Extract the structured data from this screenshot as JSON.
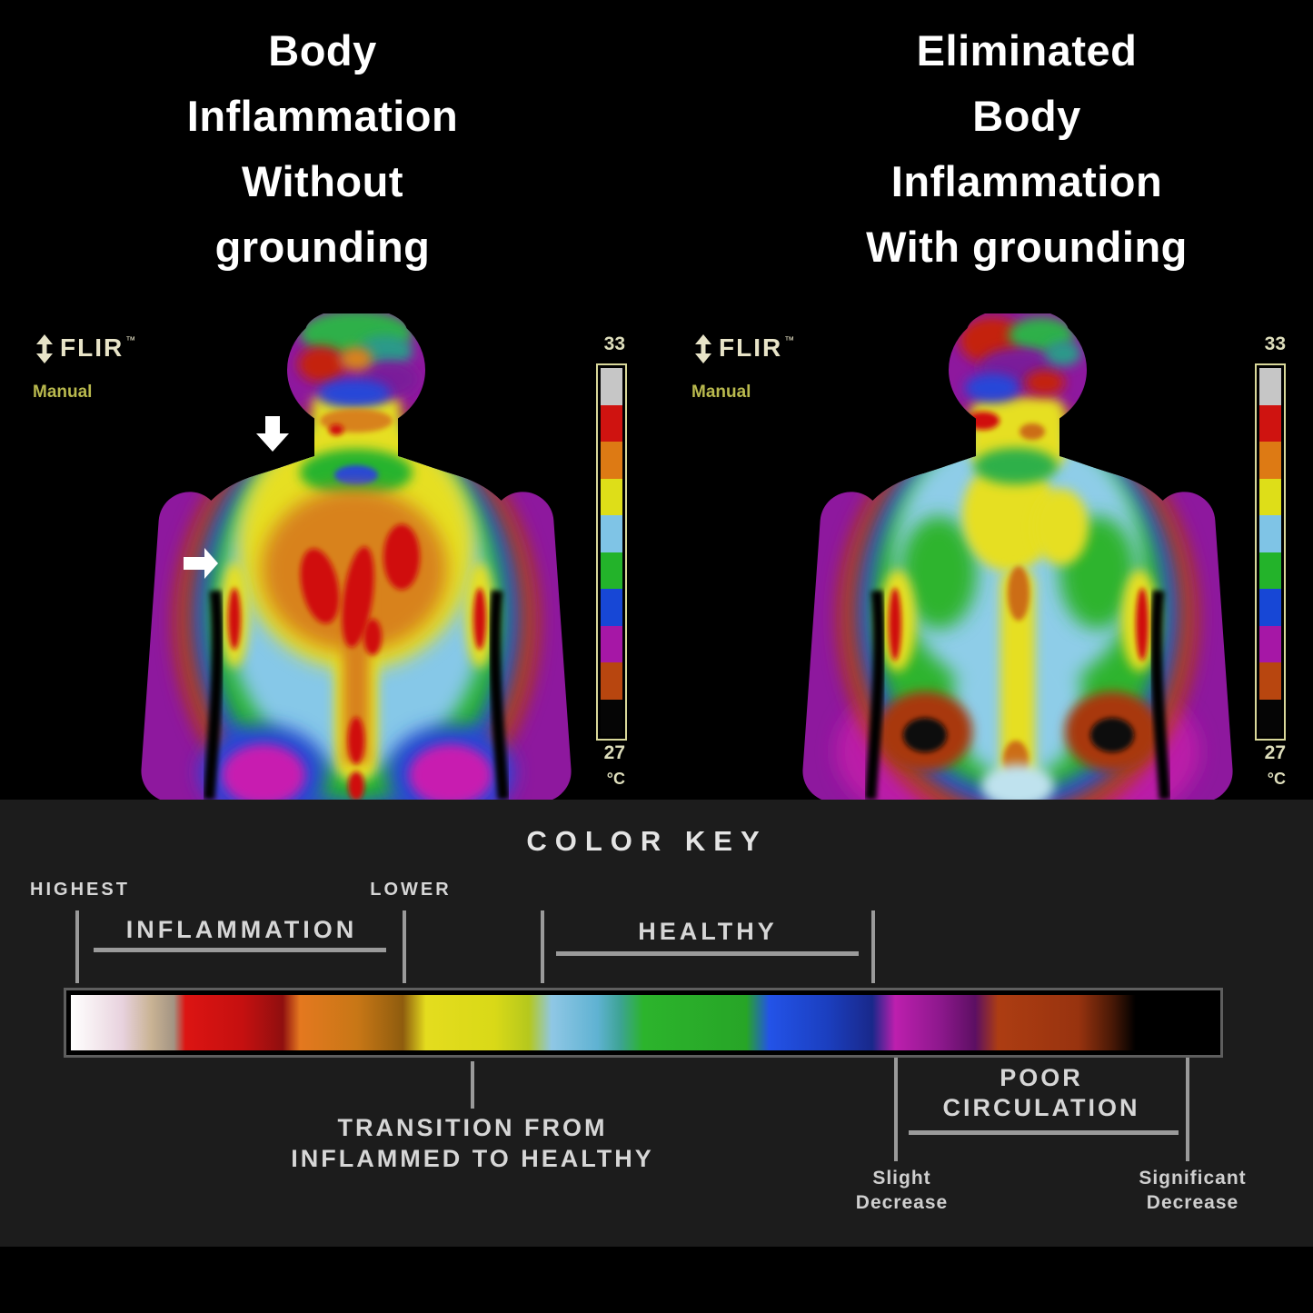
{
  "titles": {
    "left_lines": [
      "Body",
      "Inflammation",
      "Without",
      "grounding"
    ],
    "right_lines": [
      "Eliminated",
      "Body",
      "Inflammation",
      "With grounding"
    ]
  },
  "panels": [
    {
      "camera_brand": "FLIR",
      "trademark": "™",
      "mode_label": "Manual",
      "scale_max": "33",
      "scale_min": "27",
      "scale_unit": "°C"
    },
    {
      "camera_brand": "FLIR",
      "trademark": "™",
      "mode_label": "Manual",
      "scale_max": "33",
      "scale_min": "27",
      "scale_unit": "°C"
    }
  ],
  "temp_scale": {
    "segment_colors": [
      "#c6c6c6",
      "#cf1310",
      "#dd7a14",
      "#dede18",
      "#7fc4e6",
      "#23b32a",
      "#1747d6",
      "#a617a6",
      "#b8460f",
      "#050505"
    ]
  },
  "color_key": {
    "title": "COLOR KEY",
    "highest_label": "HIGHEST",
    "lower_label": "LOWER",
    "inflammation_label": "INFLAMMATION",
    "healthy_label": "HEALTHY",
    "transition_lines": [
      "TRANSITION FROM",
      "INFLAMMED TO HEALTHY"
    ],
    "poor_circulation_lines": [
      "POOR",
      "CIRCULATION"
    ],
    "slight_lines": [
      "Slight",
      "Decrease"
    ],
    "significant_lines": [
      "Significant",
      "Decrease"
    ],
    "gradient_stops": [
      "#ffffff 0%",
      "#f5ecf0 2%",
      "#e8d2de 4.5%",
      "#c9b394 7%",
      "#a39483 9%",
      "#dc1412 10%",
      "#c51010 15%",
      "#8f0f0f 18.5%",
      "#e4781f 20%",
      "#c87716 25%",
      "#8e5c0e 29%",
      "#e4dc1e 31%",
      "#d9d917 37%",
      "#b5c81d 40%",
      "#8fc7e5 42%",
      "#5fb2d2 46%",
      "#3da394 48%",
      "#2cb42c 50%",
      "#27a527 59%",
      "#2353e8 61%",
      "#1b3fc0 66%",
      "#19288a 70%",
      "#bd1fae 72%",
      "#8c188c 76%",
      "#5c0f62 79%",
      "#ad3d12 81%",
      "#98330f 88%",
      "#471806 91%",
      "#000000 93%",
      "#000000 100%"
    ]
  },
  "colors": {
    "background": "#000000",
    "key_section_bg": "#1c1c1c",
    "title_text": "#ffffff",
    "key_text": "#d6d6d6",
    "tick": "#9a9a9a",
    "flir_logo": "#e8e4c8",
    "manual_text": "#b9b94e",
    "scale_text": "#dedebc",
    "scale_frame": "#d9d89a"
  }
}
